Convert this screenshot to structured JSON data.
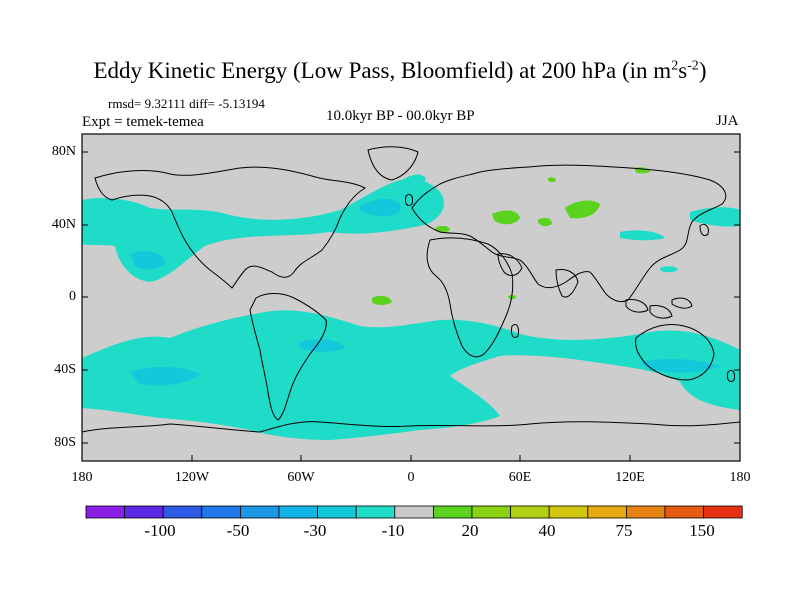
{
  "title": "Eddy Kinetic Energy (Low Pass, Bloomfield) at 200 hPa (in m",
  "title_sup1": "2",
  "title_s": "s",
  "title_sup2": "-2",
  "title_close": ")",
  "stats": "rmsd= 9.32111  diff= -5.13194",
  "expt": "Expt = temek-temea",
  "period": "10.0kyr BP - 00.0kyr BP",
  "season": "JJA",
  "y_ticks": [
    "80N",
    "40N",
    "0",
    "40S",
    "80S"
  ],
  "x_ticks": [
    "180",
    "120W",
    "60W",
    "0",
    "60E",
    "120E",
    "180"
  ],
  "colorbar": {
    "colors": [
      "#8a1ee6",
      "#5a28e6",
      "#2f5ae6",
      "#1e78e6",
      "#1e96e6",
      "#14b4e6",
      "#14c8dc",
      "#1edcc8",
      "#c8c8c8",
      "#5ad21e",
      "#8cd214",
      "#b4d214",
      "#d2c814",
      "#e6aa14",
      "#e68214",
      "#e65a14",
      "#e63214"
    ],
    "labels": [
      "-100",
      "-50",
      "-30",
      "-10",
      "20",
      "40",
      "75",
      "150"
    ]
  },
  "colors": {
    "land_gray": "#cdcdcd",
    "neg_cyan": "#1edcc8",
    "neg_blue": "#14c8dc",
    "pos_green": "#5ad21e"
  }
}
